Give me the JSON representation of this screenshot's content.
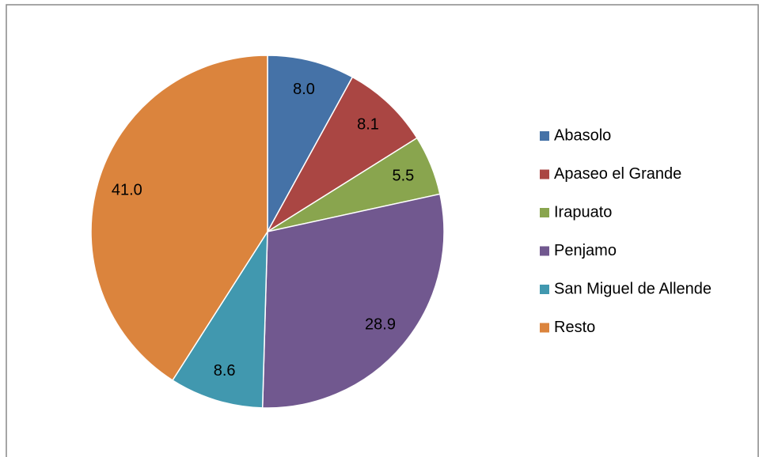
{
  "chart_data": {
    "type": "pie",
    "categories": [
      "Abasolo",
      "Apaseo el Grande",
      "Irapuato",
      "Penjamo",
      "San Miguel de Allende",
      "Resto"
    ],
    "values": [
      8.0,
      8.1,
      5.5,
      28.9,
      8.6,
      41.0
    ],
    "value_labels": [
      "8.0",
      "8.1",
      "5.5",
      "28.9",
      "8.6",
      "41.0"
    ],
    "colors": [
      "#4572a7",
      "#aa4643",
      "#89a54e",
      "#71588f",
      "#4198af",
      "#db843d"
    ],
    "legend": "right"
  }
}
